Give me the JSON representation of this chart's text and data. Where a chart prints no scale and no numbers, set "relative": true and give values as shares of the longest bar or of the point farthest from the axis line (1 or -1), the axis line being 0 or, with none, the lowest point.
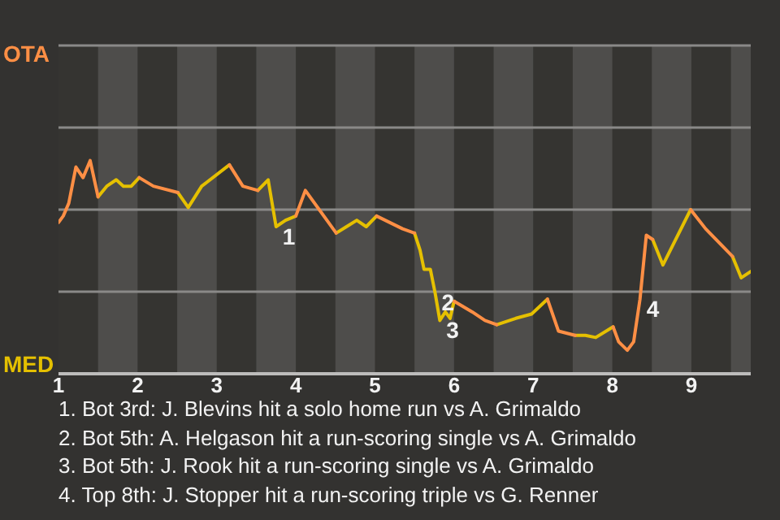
{
  "chart_data": {
    "type": "line",
    "relative": true,
    "x": [
      1.0,
      1.06,
      1.13,
      1.22,
      1.31,
      1.4,
      1.5,
      1.61,
      1.73,
      1.82,
      1.92,
      2.02,
      2.2,
      2.51,
      2.64,
      2.81,
      3.16,
      3.33,
      3.52,
      3.65,
      3.75,
      3.87,
      4.0,
      4.12,
      4.51,
      4.64,
      4.77,
      4.89,
      5.02,
      5.35,
      5.5,
      5.57,
      5.62,
      5.7,
      5.76,
      5.82,
      5.89,
      5.95,
      6.0,
      6.23,
      6.39,
      6.54,
      6.78,
      6.98,
      7.18,
      7.32,
      7.53,
      7.66,
      7.79,
      8.01,
      8.08,
      8.19,
      8.27,
      8.35,
      8.43,
      8.51,
      8.64,
      8.99,
      9.18,
      9.52,
      9.63,
      9.75
    ],
    "series": [
      {
        "color": "#ff8f45",
        "values": [
          0.71,
          0.74,
          0.8,
          0.97,
          0.92,
          1,
          0.83,
          null,
          null,
          null,
          null,
          0.92,
          0.88,
          0.85,
          null,
          null,
          0.98,
          0.88,
          0.86,
          null,
          null,
          null,
          0.74,
          0.86,
          0.66,
          null,
          null,
          null,
          0.74,
          0.68,
          0.66,
          null,
          null,
          null,
          null,
          null,
          null,
          null,
          0.34,
          0.29,
          0.25,
          0.23,
          null,
          null,
          0.35,
          0.2,
          0.18,
          null,
          null,
          0.22,
          0.15,
          0.11,
          0.15,
          0.35,
          0.65,
          0.63,
          null,
          0.77,
          0.68,
          0.55,
          null,
          null
        ]
      },
      {
        "color": "#e5c000",
        "values": [
          null,
          null,
          null,
          null,
          null,
          null,
          0.83,
          0.88,
          0.91,
          0.88,
          0.88,
          0.92,
          null,
          0.85,
          0.78,
          0.88,
          0.98,
          null,
          0.86,
          0.91,
          0.69,
          0.72,
          0.74,
          null,
          0.66,
          0.69,
          0.72,
          0.69,
          0.74,
          null,
          0.66,
          0.58,
          0.49,
          0.49,
          0.38,
          0.25,
          0.29,
          0.26,
          0.34,
          null,
          null,
          0.23,
          0.26,
          0.28,
          0.35,
          null,
          0.18,
          0.18,
          0.17,
          0.22,
          null,
          null,
          null,
          null,
          null,
          0.63,
          0.51,
          0.77,
          null,
          0.55,
          0.45,
          0.48
        ]
      }
    ],
    "xlim": [
      1,
      9.75
    ],
    "xticks": [
      1,
      2,
      3,
      4,
      5,
      6,
      7,
      8,
      9
    ],
    "legend": false,
    "marker": "none",
    "ref_lines": [
      {
        "axis": "y",
        "value": 0.385,
        "color": "#8a8988"
      },
      {
        "axis": "y",
        "value": 0.77,
        "color": "#8a8988"
      },
      {
        "axis": "y",
        "value": 1.155,
        "color": "#8a8988"
      },
      {
        "axis": "y",
        "value": 1.54,
        "color": "#8a8988"
      }
    ],
    "bands": [
      {
        "axis": "x",
        "from": 1.5,
        "to": 2,
        "color": "#4e4d4b"
      },
      {
        "axis": "x",
        "from": 2.5,
        "to": 3,
        "color": "#4e4d4b"
      },
      {
        "axis": "x",
        "from": 3.5,
        "to": 4,
        "color": "#4e4d4b"
      },
      {
        "axis": "x",
        "from": 4.5,
        "to": 5,
        "color": "#4e4d4b"
      },
      {
        "axis": "x",
        "from": 5.5,
        "to": 6,
        "color": "#4e4d4b"
      },
      {
        "axis": "x",
        "from": 6.5,
        "to": 7,
        "color": "#4e4d4b"
      },
      {
        "axis": "x",
        "from": 7.5,
        "to": 8,
        "color": "#4e4d4b"
      },
      {
        "axis": "x",
        "from": 8.5,
        "to": 9,
        "color": "#4e4d4b"
      },
      {
        "axis": "x",
        "from": 9.5,
        "to": 9.75,
        "color": "#4e4d4b"
      }
    ],
    "annotations": [
      "OTA",
      "MED",
      {
        "text": "1",
        "x": 3.75,
        "y": 0.69
      },
      {
        "text": "2",
        "x": 5.76,
        "y": 0.38
      },
      {
        "text": "3",
        "x": 5.82,
        "y": 0.25
      },
      {
        "text": "4",
        "x": 8.35,
        "y": 0.35
      },
      "1. Bot 3rd: J. Blevins hit a solo home run vs A. Grimaldo",
      "2. Bot 5th: A. Helgason hit a run-scoring single vs A. Grimaldo",
      "3. Bot 5th: J. Rook hit a run-scoring single vs A. Grimaldo",
      "4. Top 8th: J. Stopper hit a run-scoring triple vs G. Renner"
    ]
  }
}
